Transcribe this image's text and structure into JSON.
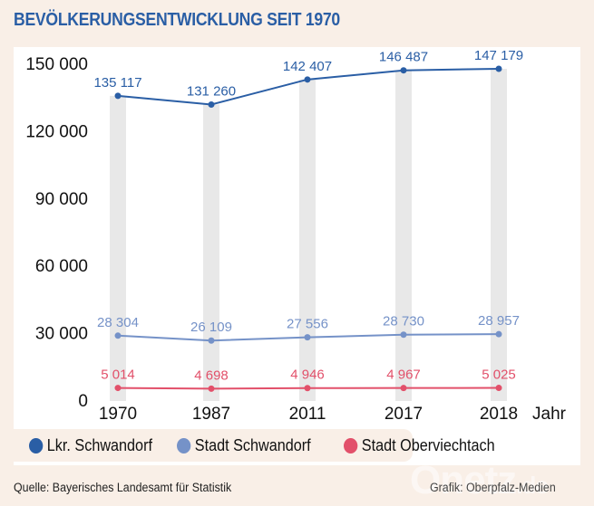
{
  "header": {
    "title": "BEVÖLKERUNGSENTWICKLUNG SEIT 1970"
  },
  "chart_data": {
    "type": "line",
    "title": "BEVÖLKERUNGSENTWICKLUNG SEIT 1970",
    "xlabel": "Jahr",
    "ylabel": "",
    "categories": [
      "1970",
      "1987",
      "2011",
      "2017",
      "2018"
    ],
    "ylim": [
      0,
      150000
    ],
    "yticks": [
      0,
      30000,
      60000,
      90000,
      120000,
      150000
    ],
    "ytick_labels": [
      "0",
      "30 000",
      "60 000",
      "90 000",
      "120 000",
      "150 000"
    ],
    "grid": false,
    "background_bars": true,
    "legend_position": "bottom",
    "series": [
      {
        "name": "Lkr. Schwandorf",
        "color": "#2a5ea5",
        "values": [
          135117,
          131260,
          142407,
          146487,
          147179
        ],
        "labels": [
          "135 117",
          "131 260",
          "142 407",
          "146 487",
          "147 179"
        ]
      },
      {
        "name": "Stadt Schwandorf",
        "color": "#7592c8",
        "values": [
          28304,
          26109,
          27556,
          28730,
          28957
        ],
        "labels": [
          "28 304",
          "26 109",
          "27 556",
          "28 730",
          "28 957"
        ]
      },
      {
        "name": "Stadt Oberviechtach",
        "color": "#e2506a",
        "values": [
          5014,
          4698,
          4946,
          4967,
          5025
        ],
        "labels": [
          "5 014",
          "4 698",
          "4 946",
          "4 967",
          "5 025"
        ]
      }
    ]
  },
  "legend": {
    "items": [
      {
        "label": "Lkr. Schwandorf",
        "color": "#2a5ea5"
      },
      {
        "label": "Stadt Schwandorf",
        "color": "#7592c8"
      },
      {
        "label": "Stadt Oberviechtach",
        "color": "#e2506a"
      }
    ]
  },
  "footer": {
    "source": "Quelle: Bayerisches Landesamt für Statistik",
    "credit": "Grafik: Oberpfalz-Medien"
  },
  "watermark": {
    "main": "Onetz",
    "suffix": ".de"
  },
  "colors": {
    "background": "#f9efe7",
    "panel": "#ffffff",
    "bar": "#e8e8e8",
    "title": "#2a5ea5"
  }
}
